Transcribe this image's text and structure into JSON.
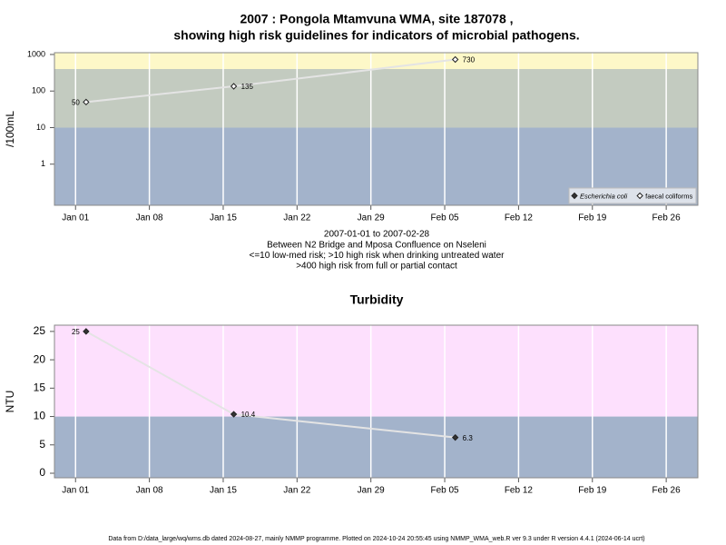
{
  "chart_data": [
    {
      "type": "line",
      "title": [
        "2007 : Pongola Mtamvuna WMA, site 187078 ,",
        "showing high risk guidelines for indicators of microbial pathogens."
      ],
      "annotations": [
        "2007-01-01 to 2007-02-28",
        "Between N2 Bridge and Mposa Confluence on Nseleni",
        "<=10 low-med risk; >10 high risk when drinking untreated water",
        ">400 high risk from full or partial contact"
      ],
      "y_label": "/100mL",
      "log_scale": true,
      "x": [
        "2007-01-02",
        "2007-01-16",
        "2007-02-06"
      ],
      "xlim": [
        "2006-12-30",
        "2007-03-01"
      ],
      "xticks": [
        {
          "value": "2007-01-01",
          "label": "Jan 01"
        },
        {
          "value": "2007-01-08",
          "label": "Jan 08"
        },
        {
          "value": "2007-01-15",
          "label": "Jan 15"
        },
        {
          "value": "2007-01-22",
          "label": "Jan 22"
        },
        {
          "value": "2007-01-29",
          "label": "Jan 29"
        },
        {
          "value": "2007-02-05",
          "label": "Feb 05"
        },
        {
          "value": "2007-02-12",
          "label": "Feb 12"
        },
        {
          "value": "2007-02-19",
          "label": "Feb 19"
        },
        {
          "value": "2007-02-26",
          "label": "Feb 26"
        }
      ],
      "ylim": [
        0.075,
        1120
      ],
      "yticks": [
        1,
        10,
        100,
        1000
      ],
      "band_edges": [
        10,
        400
      ],
      "band_colors": [
        "#a3b3cb",
        "#c3cbc0",
        "#fdf8c8"
      ],
      "grid": true,
      "legend": "bottom right",
      "line_color": "#e4e4e4",
      "series": [
        {
          "name": "Escherichia coli",
          "marker": "filled",
          "values": [
            null,
            null,
            null
          ]
        },
        {
          "name": "faecal coliforms",
          "marker": "open",
          "values": [
            50,
            135,
            730
          ]
        }
      ]
    },
    {
      "type": "line",
      "title": [
        "Turbidity"
      ],
      "y_label": "NTU",
      "log_scale": false,
      "x": [
        "2007-01-02",
        "2007-01-16",
        "2007-02-06"
      ],
      "xlim": [
        "2006-12-30",
        "2007-03-01"
      ],
      "xticks": [
        {
          "value": "2007-01-01",
          "label": "Jan 01"
        },
        {
          "value": "2007-01-08",
          "label": "Jan 08"
        },
        {
          "value": "2007-01-15",
          "label": "Jan 15"
        },
        {
          "value": "2007-01-22",
          "label": "Jan 22"
        },
        {
          "value": "2007-01-29",
          "label": "Jan 29"
        },
        {
          "value": "2007-02-05",
          "label": "Feb 05"
        },
        {
          "value": "2007-02-12",
          "label": "Feb 12"
        },
        {
          "value": "2007-02-19",
          "label": "Feb 19"
        },
        {
          "value": "2007-02-26",
          "label": "Feb 26"
        }
      ],
      "ylim": [
        -0.8,
        26.1
      ],
      "yticks": [
        0,
        5,
        10,
        15,
        20,
        25
      ],
      "band_edges": [
        10
      ],
      "band_colors": [
        "#a3b3cb",
        "#fde0fd"
      ],
      "grid": true,
      "line_color": "#e4e4e4",
      "series": [
        {
          "marker": "filled",
          "values": [
            25,
            10.4,
            6.3
          ]
        }
      ]
    }
  ],
  "footer": "Data from D:/data_large/wq/wms.db dated 2024-08-27, mainly NMMP programme. Plotted on 2024-10-24 20:55:45 using NMMP_WMA_web.R ver 9.3 under R version 4.4.1 (2024-06-14 ucrt)"
}
